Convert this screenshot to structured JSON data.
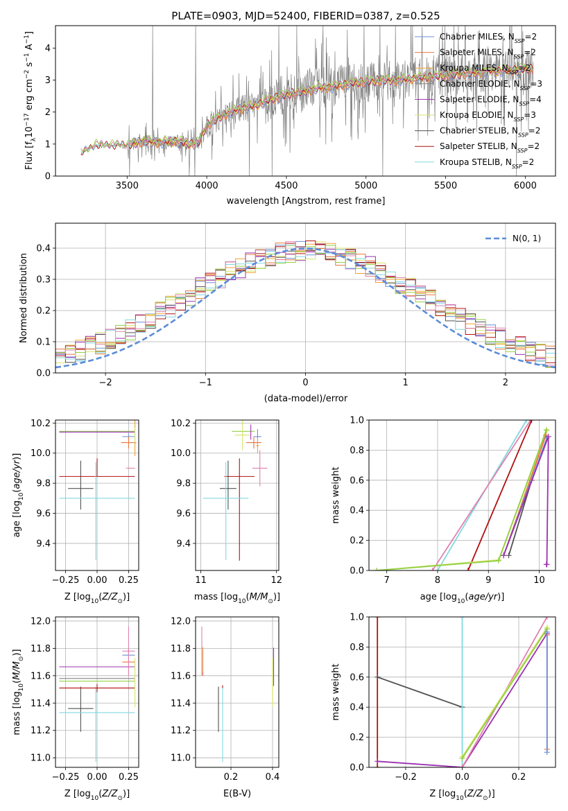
{
  "colors": {
    "Chabrier MILES": "#6b8fd6",
    "Salpeter MILES": "#e8743c",
    "Kroupa MILES": "#f0a030",
    "Chabrier ELODIE": "#808080",
    "Salpeter ELODIE": "#9b30b0",
    "Kroupa ELODIE": "#d9e26a",
    "Chabrier STELIB": "#505050",
    "Salpeter STELIB": "#b01010",
    "Kroupa STELIB": "#80d8e0",
    "pink": "#e080b0",
    "green": "#90d040",
    "normal": "#5b8cd6"
  },
  "chart_data": [
    {
      "id": "spectrum",
      "type": "line",
      "title": "PLATE=0903, MJD=52400, FIBERID=0387, z=0.525",
      "xlabel": "wavelength [Angstrom, rest frame]",
      "ylabel": "Flux [f_λ 10^-17 erg cm^-2 s^-1 A^-1]",
      "xlim": [
        3050,
        6190
      ],
      "ylim": [
        0,
        4.7
      ],
      "xticks": [
        3500,
        4000,
        4500,
        5000,
        5500,
        6000
      ],
      "yticks": [
        0,
        1,
        2,
        3,
        4
      ],
      "legend_position": "top-right",
      "legend": [
        {
          "name": "Chabrier MILES",
          "label": "Chabrier MILES, N",
          "sub": "SSP",
          "suffix": "=2"
        },
        {
          "name": "Salpeter MILES",
          "label": "Salpeter MILES, N",
          "sub": "SSP",
          "suffix": "=2"
        },
        {
          "name": "Kroupa MILES",
          "label": "Kroupa MILES, N",
          "sub": "SSP",
          "suffix": "=2"
        },
        {
          "name": "Chabrier ELODIE",
          "label": "Chabrier ELODIE, N",
          "sub": "SSP",
          "suffix": "=3"
        },
        {
          "name": "Salpeter ELODIE",
          "label": "Salpeter ELODIE, N",
          "sub": "SSP",
          "suffix": "=4"
        },
        {
          "name": "Kroupa ELODIE",
          "label": "Kroupa ELODIE, N",
          "sub": "SSP",
          "suffix": "=3"
        },
        {
          "name": "Chabrier STELIB",
          "label": "Chabrier STELIB, N",
          "sub": "SSP",
          "suffix": "=2"
        },
        {
          "name": "Salpeter STELIB",
          "label": "Salpeter STELIB, N",
          "sub": "SSP",
          "suffix": "=2"
        },
        {
          "name": "Kroupa STELIB",
          "label": "Kroupa STELIB, N",
          "sub": "SSP",
          "suffix": "=2"
        }
      ],
      "continuum": [
        [
          3200,
          0.0
        ],
        [
          3210,
          0.7
        ],
        [
          3300,
          0.95
        ],
        [
          3400,
          0.95
        ],
        [
          3500,
          0.95
        ],
        [
          3600,
          1.1
        ],
        [
          3700,
          1.05
        ],
        [
          3800,
          1.1
        ],
        [
          3900,
          1.0
        ],
        [
          3950,
          1.05
        ],
        [
          4000,
          1.6
        ],
        [
          4100,
          1.9
        ],
        [
          4200,
          2.1
        ],
        [
          4300,
          2.2
        ],
        [
          4400,
          2.4
        ],
        [
          4500,
          2.55
        ],
        [
          4600,
          2.65
        ],
        [
          4700,
          2.75
        ],
        [
          4800,
          2.8
        ],
        [
          4900,
          2.9
        ],
        [
          5000,
          2.95
        ],
        [
          5100,
          3.0
        ],
        [
          5200,
          3.0
        ],
        [
          5300,
          3.05
        ],
        [
          5400,
          3.1
        ],
        [
          5500,
          3.15
        ],
        [
          5600,
          3.2
        ],
        [
          5700,
          3.25
        ],
        [
          5800,
          3.3
        ],
        [
          5900,
          3.3
        ],
        [
          6000,
          3.35
        ],
        [
          6050,
          3.35
        ]
      ]
    },
    {
      "id": "residuals",
      "type": "histogram",
      "xlabel": "(data-model)/error",
      "ylabel": "Normed distribution",
      "xlim": [
        -2.5,
        2.5
      ],
      "ylim": [
        0,
        0.48
      ],
      "xticks": [
        -2,
        -1,
        0,
        1,
        2
      ],
      "yticks": [
        0.0,
        0.1,
        0.2,
        0.3,
        0.4
      ],
      "legend_position": "top-right",
      "normal_label": "N(0, 1)"
    },
    {
      "id": "age-vs-Z",
      "type": "errorbar",
      "xlabel": "Z [log10(Z/Z⊙)]",
      "ylabel": "age [log10(age/yr)]",
      "xlim": [
        -0.33,
        0.33
      ],
      "ylim": [
        9.22,
        10.22
      ],
      "xticks": [
        -0.25,
        0.0,
        0.25
      ],
      "yticks": [
        9.4,
        9.6,
        9.8,
        10.0,
        10.2
      ],
      "points": [
        {
          "color": "Chabrier STELIB",
          "x": -0.13,
          "xerr": 0.1,
          "y": 9.765,
          "yerr_lo": 0.14,
          "yerr_hi": 0.185
        },
        {
          "color": "Salpeter STELIB",
          "x": 0.0,
          "xerr": 0.3,
          "y": 9.845,
          "yerr_lo": 0.0,
          "yerr_hi": 0.12
        },
        {
          "color": "Kroupa STELIB",
          "x": -0.01,
          "xerr_lo": 0.29,
          "xerr_hi": 0.31,
          "y": 9.7,
          "yerr_lo": 0.41,
          "yerr_hi": 0.24
        },
        {
          "color": "green",
          "x": 0.0,
          "xerr": 0.3,
          "y": 10.145,
          "yerr": 0.0
        },
        {
          "color": "Salpeter ELODIE",
          "x": 0.0,
          "xerr": 0.3,
          "y": 10.14,
          "yerr": 0.0
        },
        {
          "color": "Chabrier MILES",
          "x": 0.25,
          "xerr": 0.05,
          "y": 10.11,
          "yerr": 0.02
        },
        {
          "color": "Salpeter MILES",
          "x": 0.25,
          "xerr": 0.06,
          "y": 10.07,
          "yerr": 0.04
        },
        {
          "color": "Kroupa MILES",
          "x": 0.3,
          "xerr": 0.0,
          "y": 10.1,
          "yerr": 0.12
        },
        {
          "color": "pink",
          "x": 0.3,
          "xerr_lo": 0.07,
          "xerr_hi": 0.0,
          "y": 9.9,
          "yerr": 0.0
        },
        {
          "color": "Kroupa ELODIE",
          "x": 0.3,
          "xerr": 0.0,
          "y": 10.12,
          "yerr": 0.05
        }
      ]
    },
    {
      "id": "age-vs-mass",
      "type": "errorbar",
      "xlabel": "mass [log10(M/M⊙)]",
      "ylabel": "",
      "xlim": [
        10.93,
        12.03
      ],
      "ylim": [
        9.22,
        10.22
      ],
      "xticks": [
        11,
        12
      ],
      "yticks": [
        9.4,
        9.6,
        9.8,
        10.0,
        10.2
      ],
      "points": [
        {
          "color": "Chabrier STELIB",
          "x": 11.36,
          "xerr": 0.11,
          "y": 9.765,
          "yerr_lo": 0.14,
          "yerr_hi": 0.185
        },
        {
          "color": "Salpeter STELIB",
          "x": 11.51,
          "xerr": 0.2,
          "y": 9.845,
          "yerr_lo": 0.56,
          "yerr_hi": 0.12
        },
        {
          "color": "Kroupa STELIB",
          "x": 11.33,
          "xerr": 0.3,
          "y": 9.7,
          "yerr_lo": 0.41,
          "yerr_hi": 0.24
        },
        {
          "color": "green",
          "x": 11.56,
          "xerr": 0.15,
          "y": 10.145,
          "yerr_lo": 0.0,
          "yerr_hi": 0.0
        },
        {
          "color": "Kroupa ELODIE",
          "x": 11.55,
          "xerr": 0.1,
          "y": 10.12,
          "yerr": 0.1
        },
        {
          "color": "Salpeter ELODIE",
          "x": 11.66,
          "xerr": 0.0,
          "y": 10.14,
          "yerr": 0.05
        },
        {
          "color": "Chabrier MILES",
          "x": 11.75,
          "xerr": 0.05,
          "y": 10.11,
          "yerr": 0.05
        },
        {
          "color": "Salpeter MILES",
          "x": 11.7,
          "xerr": 0.1,
          "y": 10.07,
          "yerr": 0.04
        },
        {
          "color": "Kroupa MILES",
          "x": 11.75,
          "xerr": 0.02,
          "y": 10.05,
          "yerr": 0.05
        },
        {
          "color": "pink",
          "x": 11.78,
          "xerr": 0.1,
          "y": 9.9,
          "yerr": 0.12
        }
      ]
    },
    {
      "id": "massweight-vs-age",
      "type": "line",
      "xlabel": "age [log10(age/yr)]",
      "ylabel": "mass weight",
      "xlim": [
        6.65,
        10.32
      ],
      "ylim": [
        0,
        1
      ],
      "xticks": [
        7,
        8,
        9,
        10
      ],
      "yticks": [
        0.0,
        0.2,
        0.4,
        0.6,
        0.8,
        1.0
      ],
      "series": [
        {
          "color": "Kroupa STELIB",
          "x": [
            8.0,
            9.75
          ],
          "y": [
            0.0,
            1.0
          ]
        },
        {
          "color": "pink",
          "x": [
            7.9,
            9.83
          ],
          "y": [
            0.0,
            1.0
          ]
        },
        {
          "color": "Salpeter STELIB",
          "x": [
            8.6,
            9.85
          ],
          "y": [
            0.0,
            1.0
          ]
        },
        {
          "color": "Chabrier STELIB",
          "x": [
            9.4,
            9.85
          ],
          "y": [
            0.1,
            0.6
          ]
        },
        {
          "color": "Kroupa ELODIE",
          "x": [
            6.8,
            9.2,
            10.15
          ],
          "y": [
            0.0,
            0.07,
            0.93
          ]
        },
        {
          "color": "green",
          "x": [
            6.8,
            9.2,
            10.14
          ],
          "y": [
            0.0,
            0.065,
            0.935
          ]
        },
        {
          "color": "Salpeter MILES",
          "x": [
            9.3,
            10.13
          ],
          "y": [
            0.1,
            0.9
          ]
        },
        {
          "color": "Chabrier MILES",
          "x": [
            9.3,
            10.15
          ],
          "y": [
            0.1,
            0.88
          ]
        },
        {
          "color": "Salpeter ELODIE",
          "x": [
            9.3,
            10.18,
            10.15,
            10.14
          ],
          "y": [
            0.1,
            0.89,
            0.04,
            0.04
          ]
        }
      ]
    },
    {
      "id": "mass-vs-Z",
      "type": "errorbar",
      "xlabel": "Z [log10(Z/Z⊙)]",
      "ylabel": "mass [log10(M/M⊙)]",
      "xlim": [
        -0.33,
        0.33
      ],
      "ylim": [
        10.93,
        12.03
      ],
      "xticks": [
        -0.25,
        0.0,
        0.25
      ],
      "yticks": [
        11.0,
        11.2,
        11.4,
        11.6,
        11.8,
        12.0
      ],
      "points": [
        {
          "color": "Chabrier STELIB",
          "x": -0.13,
          "xerr": 0.1,
          "y": 11.36,
          "yerr_lo": 0.17,
          "yerr_hi": 0.16
        },
        {
          "color": "Kroupa STELIB",
          "x": -0.01,
          "xerr_lo": 0.29,
          "xerr_hi": 0.31,
          "y": 11.33,
          "yerr_lo": 0.36,
          "yerr_hi": 0.19
        },
        {
          "color": "Salpeter STELIB",
          "x": 0.0,
          "xerr": 0.3,
          "y": 11.51,
          "yerr_lo": 0.03,
          "yerr_hi": 0.03
        },
        {
          "color": "Chabrier ELODIE",
          "x": 0.0,
          "xerr": 0.3,
          "y": 11.58,
          "yerr": 0.0
        },
        {
          "color": "green",
          "x": 0.0,
          "xerr": 0.3,
          "y": 11.56,
          "yerr": 0.0
        },
        {
          "color": "Salpeter ELODIE",
          "x": 0.0,
          "xerr": 0.3,
          "y": 11.665,
          "yerr": 0.0
        },
        {
          "color": "Chabrier MILES",
          "x": 0.25,
          "xerr": 0.05,
          "y": 11.75,
          "yerr": 0.05
        },
        {
          "color": "Salpeter MILES",
          "x": 0.25,
          "xerr": 0.05,
          "y": 11.7,
          "yerr": 0.1
        },
        {
          "color": "pink",
          "x": 0.25,
          "xerr": 0.05,
          "y": 11.78,
          "yerr": 0.18
        },
        {
          "color": "Kroupa ELODIE",
          "x": 0.3,
          "xerr": 0.0,
          "y": 11.55,
          "yerr": 0.18
        }
      ]
    },
    {
      "id": "mass-vs-ebv",
      "type": "errorbar",
      "xlabel": "E(B-V)",
      "ylabel": "",
      "xlim": [
        0.03,
        0.43
      ],
      "ylim": [
        10.93,
        12.03
      ],
      "xticks": [
        0.2,
        0.4
      ],
      "yticks": [
        11.0,
        11.2,
        11.4,
        11.6,
        11.8,
        12.0
      ],
      "points": [
        {
          "color": "Chabrier STELIB",
          "x": 0.14,
          "xerr": 0.0,
          "y": 11.36,
          "yerr_lo": 0.17,
          "yerr_hi": 0.16
        },
        {
          "color": "Kroupa STELIB",
          "x": 0.16,
          "xerr": 0.0,
          "y": 11.33,
          "yerr_lo": 0.36,
          "yerr_hi": 0.19
        },
        {
          "color": "Salpeter STELIB",
          "x": 0.16,
          "xerr": 0.0,
          "y": 11.51,
          "yerr_lo": 0.0,
          "yerr_hi": 0.02
        },
        {
          "color": "pink",
          "x": 0.06,
          "xerr": 0.0,
          "y": 11.78,
          "yerr": 0.18
        },
        {
          "color": "Salpeter MILES",
          "x": 0.065,
          "xerr": 0.0,
          "y": 11.7,
          "yerr": 0.1
        },
        {
          "color": "Kroupa MILES",
          "x": 0.065,
          "xerr": 0.0,
          "y": 11.72,
          "yerr": 0.09
        },
        {
          "color": "Salpeter ELODIE",
          "x": 0.405,
          "xerr": 0.0,
          "y": 11.665,
          "yerr": 0.14
        },
        {
          "color": "green",
          "x": 0.4,
          "xerr": 0.0,
          "y": 11.56,
          "yerr": 0.16
        },
        {
          "color": "Kroupa ELODIE",
          "x": 0.4,
          "xerr": 0.0,
          "y": 11.55,
          "yerr": 0.18
        }
      ]
    },
    {
      "id": "massweight-vs-Z",
      "type": "line",
      "xlabel": "Z [log10(Z/Z⊙)]",
      "ylabel": "mass weight",
      "xlim": [
        -0.33,
        0.33
      ],
      "ylim": [
        0,
        1
      ],
      "xticks": [
        -0.2,
        0.0,
        0.2
      ],
      "yticks": [
        0.0,
        0.2,
        0.4,
        0.6,
        0.8,
        1.0
      ],
      "series": [
        {
          "color": "Salpeter STELIB",
          "x": [
            -0.3,
            -0.3
          ],
          "y": [
            0.0,
            1.0
          ]
        },
        {
          "color": "Chabrier STELIB",
          "x": [
            -0.3,
            0.0
          ],
          "y": [
            0.6,
            0.4
          ]
        },
        {
          "color": "Salpeter ELODIE",
          "x": [
            -0.3,
            0.0,
            0.3
          ],
          "y": [
            0.04,
            0.0,
            0.89
          ]
        },
        {
          "color": "Kroupa STELIB",
          "x": [
            0.0,
            0.0
          ],
          "y": [
            0.0,
            1.0
          ]
        },
        {
          "color": "pink",
          "x": [
            0.0,
            0.3
          ],
          "y": [
            0.0,
            1.0
          ]
        },
        {
          "color": "Kroupa ELODIE",
          "x": [
            0.0,
            0.3
          ],
          "y": [
            0.07,
            0.93
          ]
        },
        {
          "color": "green",
          "x": [
            0.0,
            0.3
          ],
          "y": [
            0.06,
            0.92
          ]
        },
        {
          "color": "Salpeter MILES",
          "x": [
            0.3,
            0.3
          ],
          "y": [
            0.12,
            0.88
          ]
        },
        {
          "color": "Chabrier MILES",
          "x": [
            0.3,
            0.3
          ],
          "y": [
            0.1,
            0.9
          ]
        }
      ]
    }
  ]
}
